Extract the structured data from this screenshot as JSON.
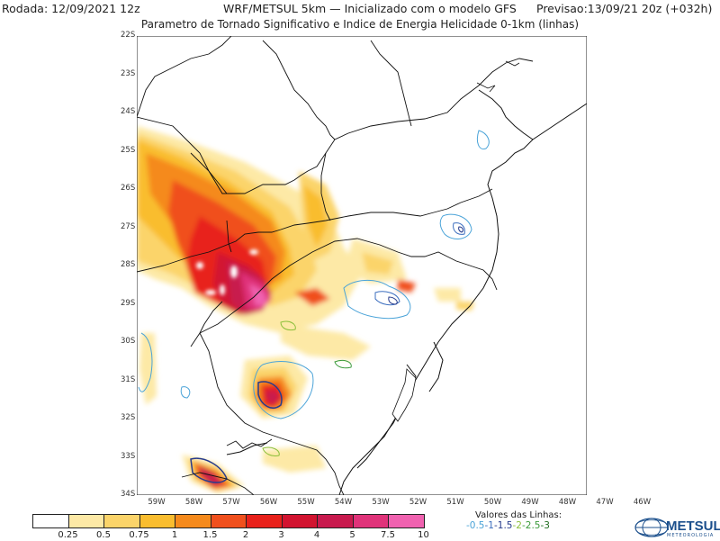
{
  "header": {
    "run": "Rodada: 12/09/2021 12z",
    "model": "WRF/METSUL 5km — Inicializado com o modelo GFS",
    "forecast": "Previsao:13/09/21 20z (+032h)",
    "subtitle": "Parametro de Tornado Significativo e Indice de Energia Helicidade 0-1km (linhas)"
  },
  "axes": {
    "lat_labels": [
      "22S",
      "23S",
      "24S",
      "25S",
      "26S",
      "27S",
      "28S",
      "29S",
      "30S",
      "31S",
      "32S",
      "33S",
      "34S"
    ],
    "lon_labels": [
      "59W",
      "58W",
      "57W",
      "56W",
      "55W",
      "54W",
      "53W",
      "52W",
      "51W",
      "50W",
      "49W",
      "48W",
      "47W",
      "46W"
    ]
  },
  "colorbar": {
    "colors": [
      "#ffffff",
      "#fde9a6",
      "#fbd46a",
      "#f9bd2f",
      "#f58a1c",
      "#f0501d",
      "#e8211b",
      "#d21430",
      "#c81a4e",
      "#e0337a",
      "#f062b0"
    ],
    "labels": [
      "0.25",
      "0.5",
      "0.75",
      "1",
      "1.5",
      "2",
      "3",
      "4",
      "5",
      "7.5",
      "10"
    ]
  },
  "line_legend": {
    "title": "Valores das Linhas:",
    "values": [
      {
        "text": "-0.5",
        "color": "#4aa3d8"
      },
      {
        "text": "-1",
        "color": "#3d6fbf"
      },
      {
        "text": "-1.5",
        "color": "#283c8c"
      },
      {
        "text": "-2",
        "color": "#8bbf3a"
      },
      {
        "text": "-2.5",
        "color": "#3a9a3a"
      },
      {
        "text": "-3",
        "color": "#1f6d1f"
      }
    ]
  },
  "logo": {
    "name": "METSUL",
    "tagline": "METEOROLOGIA"
  }
}
